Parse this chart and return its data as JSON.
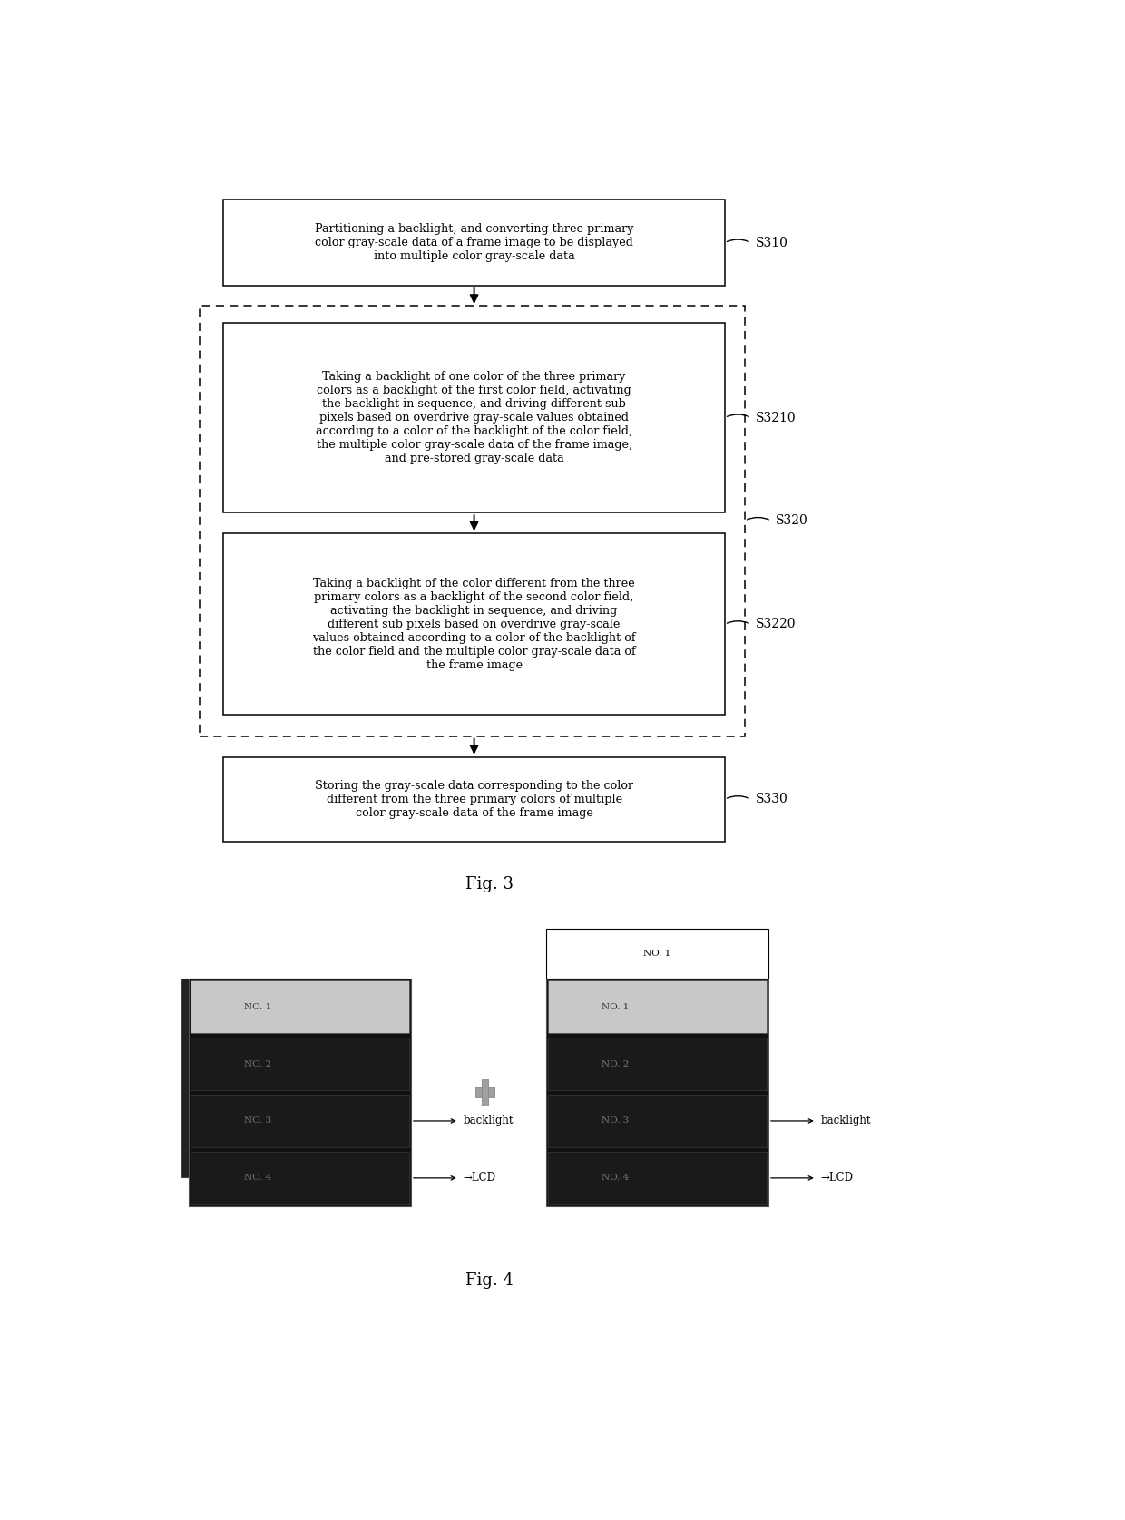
{
  "bg_color": "#ffffff",
  "fig3_title": "Fig. 3",
  "fig4_title": "Fig. 4",
  "box1_text": "Partitioning a backlight, and converting three primary\ncolor gray-scale data of a frame image to be displayed\ninto multiple color gray-scale data",
  "box1_label": "S310",
  "box2_text": "Taking a backlight of one color of the three primary\ncolors as a backlight of the first color field, activating\nthe backlight in sequence, and driving different sub\npixels based on overdrive gray-scale values obtained\naccording to a color of the backlight of the color field,\nthe multiple color gray-scale data of the frame image,\nand pre-stored gray-scale data",
  "box2_label": "S3210",
  "box3_text": "Taking a backlight of the color different from the three\nprimary colors as a backlight of the second color field,\nactivating the backlight in sequence, and driving\ndifferent sub pixels based on overdrive gray-scale\nvalues obtained according to a color of the backlight of\nthe color field and the multiple color gray-scale data of\nthe frame image",
  "box3_label": "S3220",
  "box4_text": "Storing the gray-scale data corresponding to the color\ndifferent from the three primary colors of multiple\ncolor gray-scale data of the frame image",
  "box4_label": "S330",
  "dashed_label": "S320",
  "row_labels": [
    "NO. 1",
    "NO. 2",
    "NO. 3",
    "NO. 4"
  ],
  "row_colors": [
    "#c8c8c8",
    "#1a1a1a",
    "#1a1a1a",
    "#1a1a1a"
  ],
  "backlight_text": "backlight",
  "lcd_text": "→LCD",
  "plus_color": "#a0a0a0",
  "panel_bg": "#111111",
  "panel_edge": "#555555",
  "back_panel_color": "#222222"
}
